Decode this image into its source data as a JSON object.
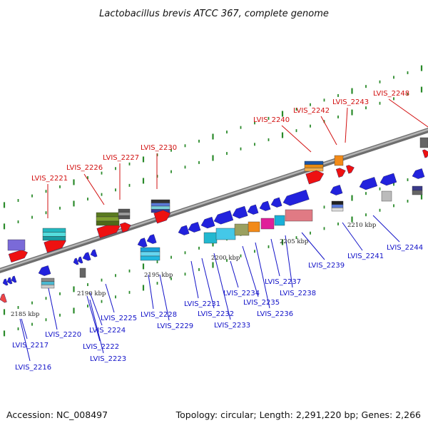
{
  "title": "Lactobacillus brevis ATCC 367, complete genome",
  "footer": {
    "accession": "Accession: NC_008497",
    "summary": "Topology: circular; Length: 2,291,220 bp; Genes: 2,266"
  },
  "colors": {
    "upper_label": "#d21010",
    "lower_label": "#1212c8",
    "backbone": "#8c8c8c",
    "tick": "#2a8a2a"
  },
  "kbp_ticks": [
    {
      "label": "2185 kbp"
    },
    {
      "label": "2190 kbp"
    },
    {
      "label": "2195 kbp"
    },
    {
      "label": "2200 kbp"
    },
    {
      "label": "2205 kbp"
    },
    {
      "label": "2210 kbp"
    }
  ],
  "upper_labels": [
    {
      "text": "LVIS_2221"
    },
    {
      "text": "LVIS_2226"
    },
    {
      "text": "LVIS_2227"
    },
    {
      "text": "LVIS_2230"
    },
    {
      "text": "LVIS_2240"
    },
    {
      "text": "LVIS_2242"
    },
    {
      "text": "LVIS_2243"
    },
    {
      "text": "LVIS_2248"
    }
  ],
  "lower_labels": [
    {
      "text": "LVIS_2216"
    },
    {
      "text": "LVIS_2217"
    },
    {
      "text": "LVIS_2220"
    },
    {
      "text": "LVIS_2222"
    },
    {
      "text": "LVIS_2223"
    },
    {
      "text": "LVIS_2224"
    },
    {
      "text": "LVIS_2225"
    },
    {
      "text": "LVIS_2228"
    },
    {
      "text": "LVIS_2229"
    },
    {
      "text": "LVIS_2231"
    },
    {
      "text": "LVIS_2232"
    },
    {
      "text": "LVIS_2233"
    },
    {
      "text": "LVIS_2234"
    },
    {
      "text": "LVIS_2235"
    },
    {
      "text": "LVIS_2236"
    },
    {
      "text": "LVIS_2237"
    },
    {
      "text": "LVIS_2238"
    },
    {
      "text": "LVIS_2239"
    },
    {
      "text": "LVIS_2241"
    },
    {
      "text": "LVIS_2244"
    }
  ]
}
